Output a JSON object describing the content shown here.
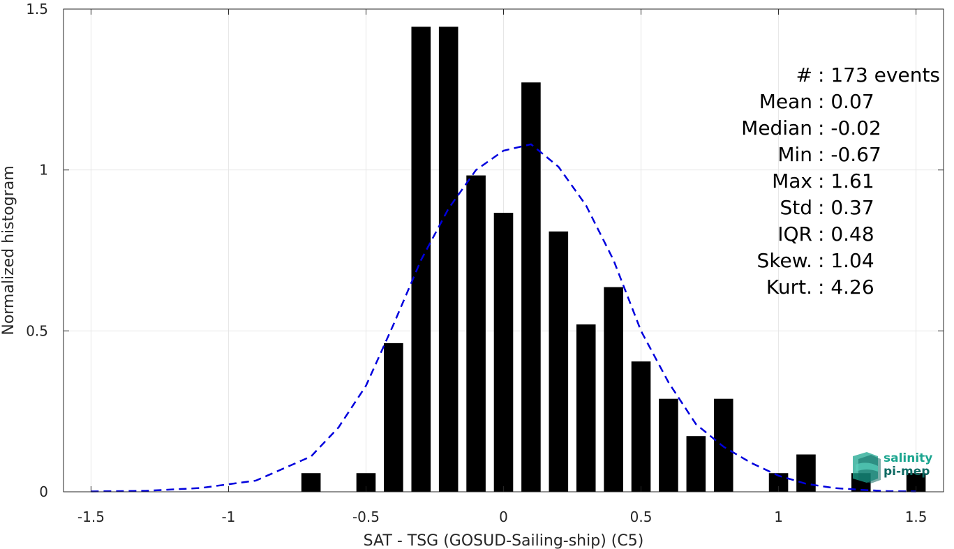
{
  "chart_data": {
    "type": "bar",
    "title": "",
    "xlabel": "SAT - TSG (GOSUD-Sailing-ship) (C5)",
    "ylabel": "Normalized histogram",
    "xlim": [
      -1.6,
      1.6
    ],
    "ylim": [
      0,
      1.5
    ],
    "xticks": [
      -1.5,
      -1,
      -0.5,
      0,
      0.5,
      1,
      1.5
    ],
    "xtick_labels": [
      "-1.5",
      "-1",
      "-0.5",
      "0",
      "0.5",
      "1",
      "1.5"
    ],
    "yticks": [
      0,
      0.5,
      1,
      1.5
    ],
    "ytick_labels": [
      "0",
      "0.5",
      "1",
      "1.5"
    ],
    "grid": true,
    "bar_width": 0.07,
    "bar_color": "#000000",
    "bars": [
      {
        "x": -0.7,
        "y": 0.058
      },
      {
        "x": -0.5,
        "y": 0.058
      },
      {
        "x": -0.4,
        "y": 0.462
      },
      {
        "x": -0.3,
        "y": 1.445
      },
      {
        "x": -0.2,
        "y": 1.445
      },
      {
        "x": -0.1,
        "y": 0.983
      },
      {
        "x": 0.0,
        "y": 0.867
      },
      {
        "x": 0.1,
        "y": 1.272
      },
      {
        "x": 0.2,
        "y": 0.809
      },
      {
        "x": 0.3,
        "y": 0.52
      },
      {
        "x": 0.4,
        "y": 0.636
      },
      {
        "x": 0.5,
        "y": 0.405
      },
      {
        "x": 0.6,
        "y": 0.289
      },
      {
        "x": 0.7,
        "y": 0.173
      },
      {
        "x": 0.8,
        "y": 0.289
      },
      {
        "x": 1.0,
        "y": 0.058
      },
      {
        "x": 1.1,
        "y": 0.116
      },
      {
        "x": 1.3,
        "y": 0.058
      },
      {
        "x": 1.5,
        "y": 0.058
      }
    ],
    "fit_curve": {
      "style": "dashed",
      "color": "#0000dd",
      "x": [
        -1.5,
        -1.3,
        -1.1,
        -0.9,
        -0.7,
        -0.6,
        -0.5,
        -0.4,
        -0.3,
        -0.2,
        -0.1,
        0.0,
        0.1,
        0.2,
        0.3,
        0.4,
        0.5,
        0.6,
        0.7,
        0.8,
        0.9,
        1.0,
        1.1,
        1.2,
        1.3,
        1.4,
        1.5
      ],
      "y": [
        0.001,
        0.003,
        0.012,
        0.035,
        0.11,
        0.2,
        0.33,
        0.52,
        0.72,
        0.88,
        1.0,
        1.06,
        1.08,
        1.01,
        0.89,
        0.72,
        0.5,
        0.34,
        0.21,
        0.14,
        0.09,
        0.05,
        0.025,
        0.012,
        0.006,
        0.002,
        0.001
      ]
    }
  },
  "stats": [
    {
      "label": "#  ",
      "value": "173 events"
    },
    {
      "label": "Mean",
      "value": "0.07"
    },
    {
      "label": "Median",
      "value": "-0.02"
    },
    {
      "label": "Min",
      "value": "-0.67"
    },
    {
      "label": "Max",
      "value": "1.61"
    },
    {
      "label": "Std",
      "value": "0.37"
    },
    {
      "label": "IQR",
      "value": "0.48"
    },
    {
      "label": "Skew.",
      "value": "1.04"
    },
    {
      "label": "Kurt.",
      "value": "4.26"
    }
  ],
  "logo": {
    "line1": "salinity",
    "line2": "pi-mep"
  }
}
